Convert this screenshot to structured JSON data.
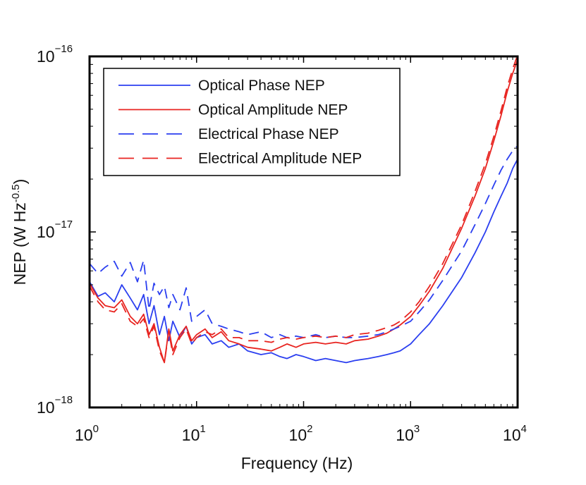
{
  "chart_data": {
    "type": "line",
    "xscale": "log",
    "yscale": "log",
    "xlabel": "Frequency (Hz)",
    "ylabel": "NEP (W Hz",
    "ylabel_exponent": "-0.5",
    "ylabel_close": ")",
    "xlim": [
      1,
      10000
    ],
    "ylim": [
      1e-18,
      1e-16
    ],
    "grid": false,
    "legend_position": "top-left",
    "x_ticks": [
      {
        "value": 1,
        "base": "10",
        "exp": "0"
      },
      {
        "value": 10,
        "base": "10",
        "exp": "1"
      },
      {
        "value": 100,
        "base": "10",
        "exp": "2"
      },
      {
        "value": 1000,
        "base": "10",
        "exp": "3"
      },
      {
        "value": 10000,
        "base": "10",
        "exp": "4"
      }
    ],
    "y_ticks": [
      {
        "value": 1e-18,
        "base": "10",
        "exp": "−18"
      },
      {
        "value": 1e-17,
        "base": "10",
        "exp": "−17"
      },
      {
        "value": 1e-16,
        "base": "10",
        "exp": "−16"
      }
    ],
    "series": [
      {
        "name": "Optical Phase NEP",
        "color": "#2b3ff0",
        "dash": "solid",
        "x": [
          1,
          1.2,
          1.4,
          1.7,
          2,
          2.4,
          2.8,
          3.2,
          3.6,
          4,
          4.5,
          5,
          5.5,
          6,
          7,
          8,
          9,
          10,
          12,
          14,
          17,
          20,
          25,
          30,
          40,
          50,
          60,
          70,
          85,
          100,
          130,
          160,
          200,
          250,
          300,
          400,
          500,
          600,
          700,
          800,
          1000,
          1200,
          1500,
          2000,
          3000,
          4000,
          5000,
          6000,
          7000,
          8000,
          9000,
          10000
        ],
        "y": [
          5.2e-18,
          4.3e-18,
          4.5e-18,
          4e-18,
          5e-18,
          4.2e-18,
          3.6e-18,
          4.4e-18,
          3e-18,
          3.8e-18,
          2.6e-18,
          3.3e-18,
          2.4e-18,
          3.1e-18,
          2.5e-18,
          2.9e-18,
          2.3e-18,
          2.5e-18,
          2.6e-18,
          2.3e-18,
          2.4e-18,
          2.2e-18,
          2.3e-18,
          2.1e-18,
          2e-18,
          2.05e-18,
          1.95e-18,
          1.9e-18,
          2e-18,
          1.95e-18,
          1.85e-18,
          1.9e-18,
          1.85e-18,
          1.8e-18,
          1.85e-18,
          1.9e-18,
          1.95e-18,
          2e-18,
          2.05e-18,
          2.1e-18,
          2.3e-18,
          2.6e-18,
          3e-18,
          3.8e-18,
          5.5e-18,
          7.6e-18,
          1e-17,
          1.3e-17,
          1.6e-17,
          1.9e-17,
          2.3e-17,
          2.6e-17
        ]
      },
      {
        "name": "Optical Amplitude NEP",
        "color": "#e82420",
        "dash": "solid",
        "x": [
          1,
          1.2,
          1.4,
          1.7,
          2,
          2.4,
          2.8,
          3.2,
          3.6,
          4,
          4.5,
          5,
          5.5,
          6,
          7,
          8,
          9,
          10,
          12,
          14,
          17,
          20,
          25,
          30,
          40,
          50,
          60,
          70,
          85,
          100,
          130,
          160,
          200,
          250,
          300,
          400,
          500,
          600,
          700,
          800,
          1000,
          1200,
          1500,
          2000,
          3000,
          4000,
          5000,
          6000,
          7000,
          8000,
          9000,
          10000
        ],
        "y": [
          5.1e-18,
          4.2e-18,
          3.8e-18,
          3.7e-18,
          4.1e-18,
          3.3e-18,
          3e-18,
          3.4e-18,
          2.6e-18,
          3e-18,
          2.2e-18,
          1.8e-18,
          2.8e-18,
          2.1e-18,
          2.6e-18,
          2.9e-18,
          2.4e-18,
          2.6e-18,
          2.8e-18,
          2.5e-18,
          2.7e-18,
          2.4e-18,
          2.3e-18,
          2.2e-18,
          2.15e-18,
          2.1e-18,
          2.2e-18,
          2.3e-18,
          2.2e-18,
          2.3e-18,
          2.35e-18,
          2.3e-18,
          2.35e-18,
          2.3e-18,
          2.4e-18,
          2.45e-18,
          2.55e-18,
          2.65e-18,
          2.8e-18,
          2.95e-18,
          3.3e-18,
          3.8e-18,
          4.6e-18,
          6.2e-18,
          1.05e-17,
          1.6e-17,
          2.3e-17,
          3.3e-17,
          4.6e-17,
          6.3e-17,
          8e-17,
          9.6e-17
        ]
      },
      {
        "name": "Electrical Phase NEP",
        "color": "#2b3ff0",
        "dash": "dashed",
        "x": [
          1,
          1.2,
          1.4,
          1.7,
          2,
          2.4,
          2.8,
          3.2,
          3.6,
          4,
          4.5,
          5,
          5.5,
          6,
          7,
          8,
          9,
          10,
          12,
          14,
          17,
          20,
          25,
          30,
          40,
          50,
          60,
          70,
          85,
          100,
          130,
          160,
          200,
          250,
          300,
          400,
          500,
          600,
          700,
          800,
          1000,
          1200,
          1500,
          2000,
          3000,
          4000,
          5000,
          6000,
          7000,
          8000,
          9000,
          10000
        ],
        "y": [
          6.6e-18,
          5.8e-18,
          6.3e-18,
          6.8e-18,
          5.6e-18,
          6.7e-18,
          5.2e-18,
          6.9e-18,
          3.6e-18,
          5.1e-18,
          4.4e-18,
          4.9e-18,
          3.7e-18,
          4.4e-18,
          3.6e-18,
          4.8e-18,
          3.1e-18,
          3.3e-18,
          3.6e-18,
          3e-18,
          2.9e-18,
          2.8e-18,
          2.7e-18,
          2.6e-18,
          2.7e-18,
          2.5e-18,
          2.6e-18,
          2.5e-18,
          2.55e-18,
          2.5e-18,
          2.6e-18,
          2.5e-18,
          2.55e-18,
          2.5e-18,
          2.5e-18,
          2.55e-18,
          2.6e-18,
          2.7e-18,
          2.8e-18,
          2.9e-18,
          3.1e-18,
          3.5e-18,
          4.1e-18,
          5.3e-18,
          7.8e-18,
          1.1e-17,
          1.45e-17,
          1.85e-17,
          2.25e-17,
          2.6e-17,
          2.9e-17,
          3.1e-17
        ]
      },
      {
        "name": "Electrical Amplitude NEP",
        "color": "#e82420",
        "dash": "dashed",
        "x": [
          1,
          1.2,
          1.4,
          1.7,
          2,
          2.4,
          2.8,
          3.2,
          3.6,
          4,
          4.5,
          5,
          5.5,
          6,
          7,
          8,
          9,
          10,
          12,
          14,
          17,
          20,
          25,
          30,
          40,
          50,
          60,
          70,
          85,
          100,
          130,
          160,
          200,
          250,
          300,
          400,
          500,
          600,
          700,
          800,
          1000,
          1200,
          1500,
          2000,
          3000,
          4000,
          5000,
          6000,
          7000,
          8000,
          9000,
          10000
        ],
        "y": [
          4.9e-18,
          4e-18,
          3.6e-18,
          3.5e-18,
          3.9e-18,
          3.1e-18,
          2.9e-18,
          3.2e-18,
          2.5e-18,
          2.9e-18,
          2.1e-18,
          1.8e-18,
          2.7e-18,
          2e-18,
          2.5e-18,
          2.8e-18,
          2.3e-18,
          2.5e-18,
          2.7e-18,
          2.6e-18,
          2.8e-18,
          2.5e-18,
          2.5e-18,
          2.4e-18,
          2.4e-18,
          2.35e-18,
          2.45e-18,
          2.5e-18,
          2.45e-18,
          2.5e-18,
          2.55e-18,
          2.5e-18,
          2.55e-18,
          2.5e-18,
          2.6e-18,
          2.65e-18,
          2.75e-18,
          2.85e-18,
          2.95e-18,
          3.1e-18,
          3.5e-18,
          4e-18,
          4.9e-18,
          6.6e-18,
          1.1e-17,
          1.7e-17,
          2.45e-17,
          3.5e-17,
          4.9e-17,
          6.7e-17,
          8.5e-17,
          1.02e-16
        ]
      }
    ]
  }
}
